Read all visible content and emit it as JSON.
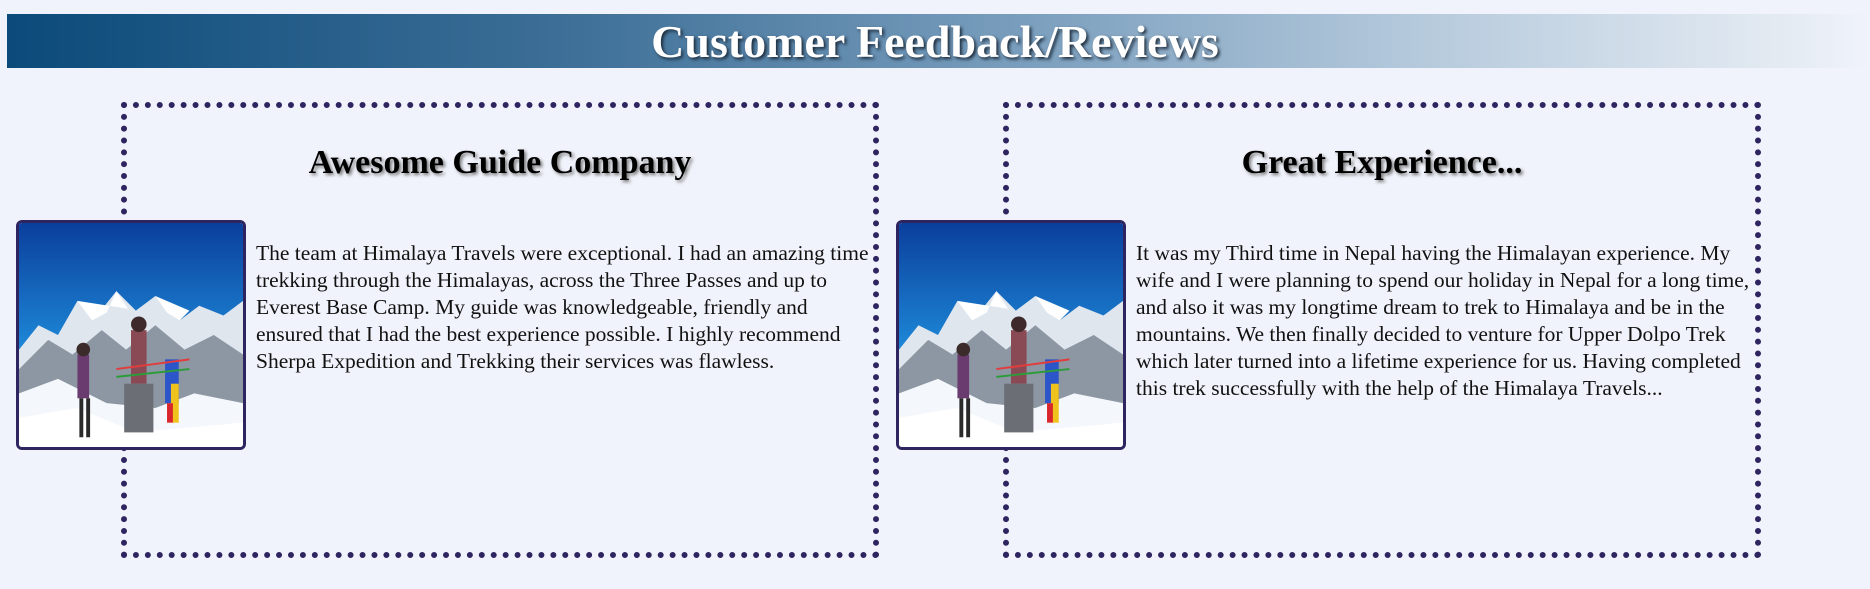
{
  "header": {
    "title": "Customer Feedback/Reviews"
  },
  "colors": {
    "banner_start": "#0b4a7a",
    "banner_end": "#f0f3fb",
    "card_border": "#2e2460",
    "page_background": "#f0f3fb"
  },
  "reviews": [
    {
      "title": "Awesome Guide Company",
      "photo_icon": "mountain-trekkers-photo",
      "text": "The team at Himalaya Travels were exceptional. I had an amazing time trekking through the Himalayas, across the Three Passes and up to Everest Base Camp. My guide was knowledgeable, friendly and ensured that I had the best experience possible. I highly recommend Sherpa Expedition and Trekking their services was flawless."
    },
    {
      "title": "Great Experience...",
      "photo_icon": "mountain-trekkers-photo",
      "text": "It was my Third time in Nepal having the Himalayan experience. My wife and I were planning to spend our holiday in Nepal for a long time, and also it was my longtime dream to trek to Himalaya and be in the mountains. We then finally decided to venture for Upper Dolpo Trek which later turned into a lifetime experience for us. Having completed this trek successfully with the help of the Himalaya Travels..."
    }
  ]
}
